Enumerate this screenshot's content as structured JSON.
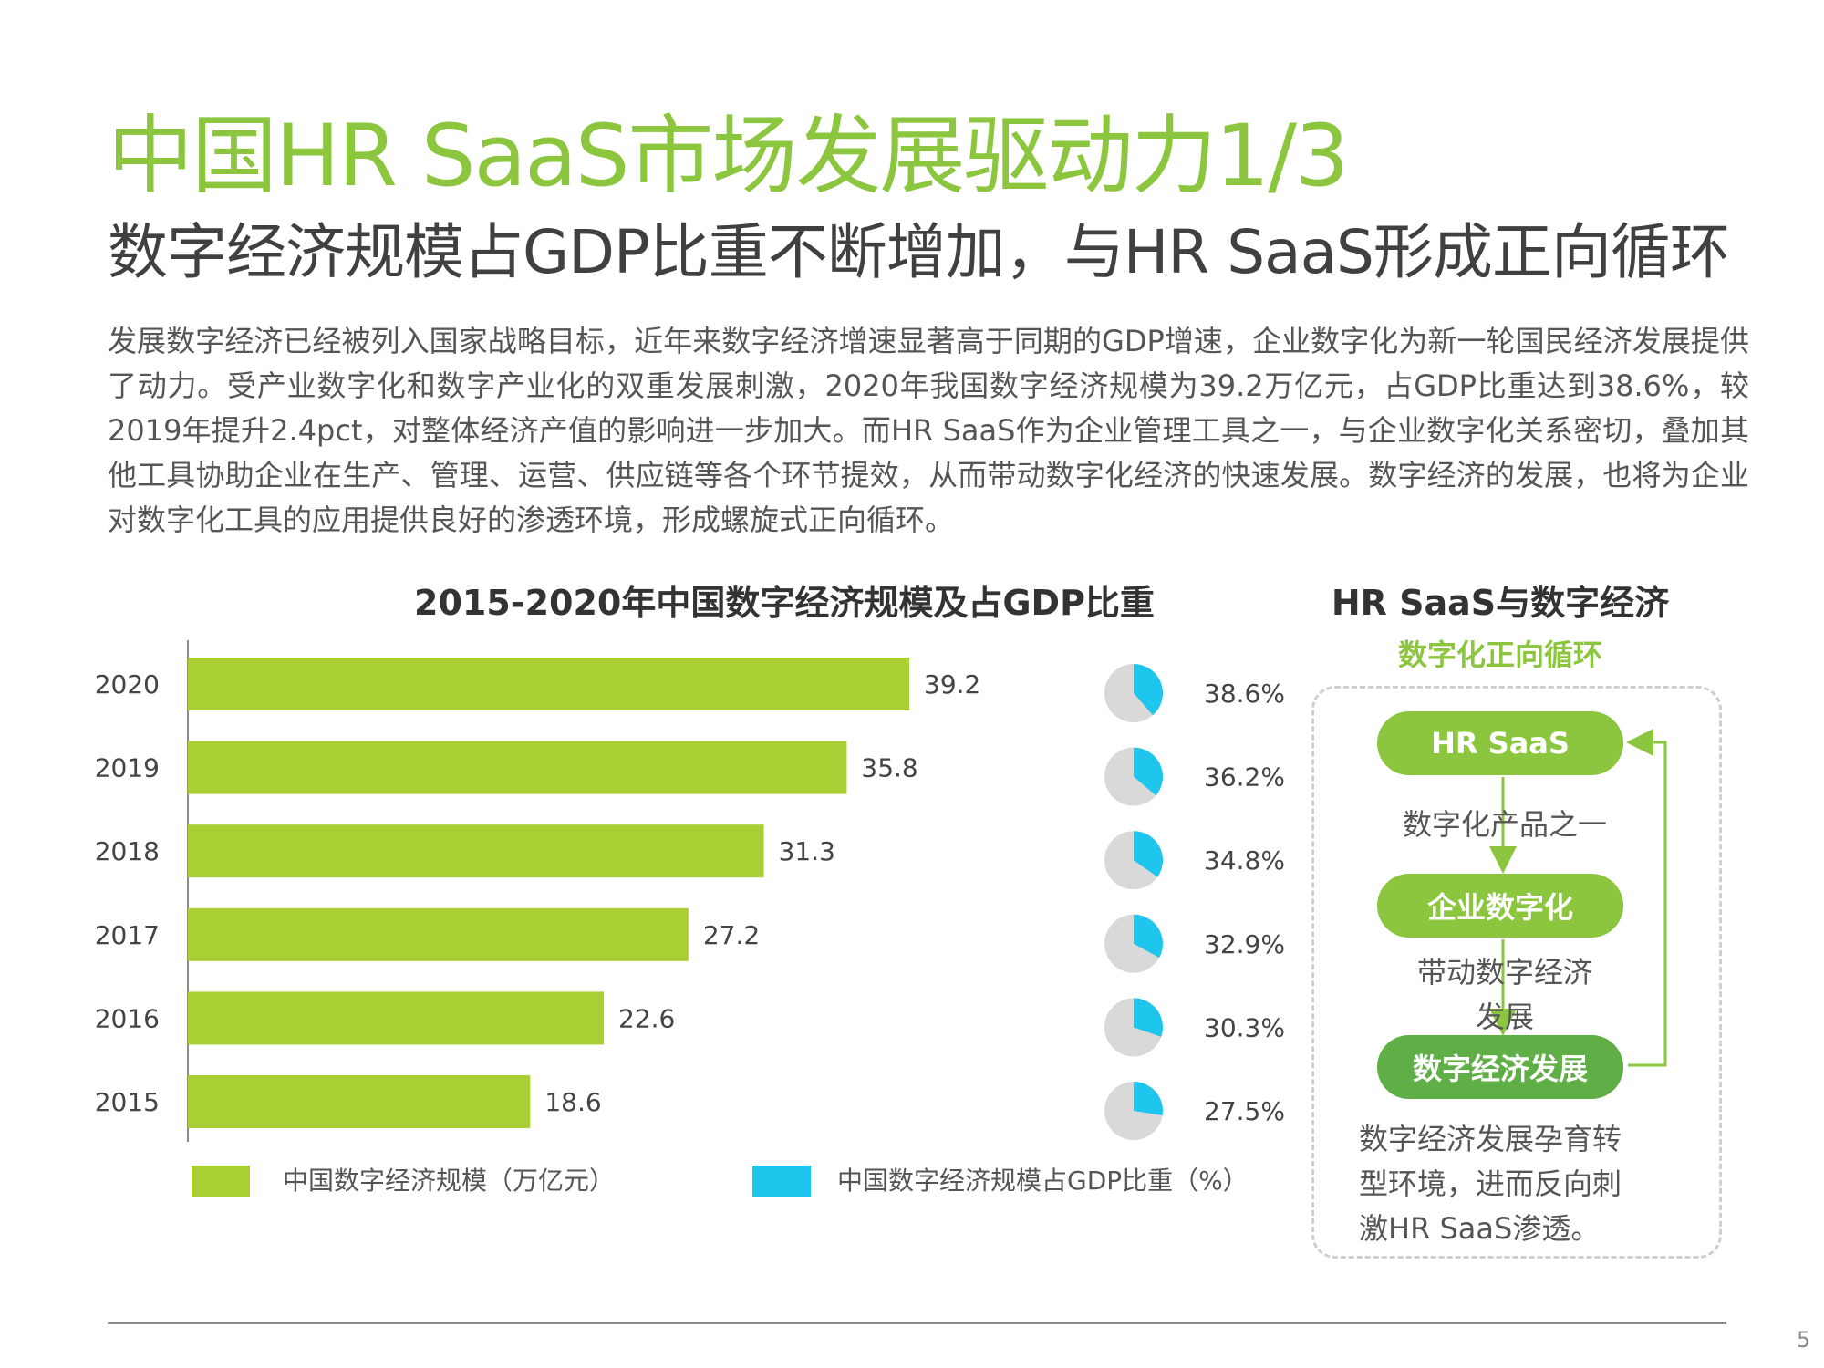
{
  "title": "中国HR SaaS市场发展驱动力1/3",
  "subtitle": "数字经济规模占GDP比重不断增加，与HR SaaS形成正向循环",
  "intro": "发展数字经济已经被列入国家战略目标，近年来数字经济增速显著高于同期的GDP增速，企业数字化为新一轮国民经济发展提供了动力。受产业数字化和数字产业化的双重发展刺激，2020年我国数字经济规模为39.2万亿元，占GDP比重达到38.6%，较2019年提升2.4pct，对整体经济产值的影响进一步加大。而HR SaaS作为企业管理工具之一，与企业数字化关系密切，叠加其他工具协助企业在生产、管理、运营、供应链等各个环节提效，从而带动数字化经济的快速发展。数字经济的发展，也将为企业对数字化工具的应用提供良好的渗透环境，形成螺旋式正向循环。",
  "colors": {
    "bar": "#a9cf34",
    "pie_share": "#1ec6ee",
    "pie_rest": "#d9d9d9",
    "title": "#8cc63f",
    "pill": "#8cc63f",
    "pill_dark": "#5fae46"
  },
  "chart_data": {
    "type": "bar",
    "orientation": "horizontal",
    "title": "2015-2020年中国数字经济规模及占GDP比重",
    "categories": [
      "2020",
      "2019",
      "2018",
      "2017",
      "2016",
      "2015"
    ],
    "series": [
      {
        "name": "中国数字经济规模（万亿元）",
        "values": [
          39.2,
          35.8,
          31.3,
          27.2,
          22.6,
          18.6
        ],
        "labels": [
          "39.2",
          "35.8",
          "31.3",
          "27.2",
          "22.6",
          "18.6"
        ]
      },
      {
        "name": "中国数字经济规模占GDP比重（%）",
        "chart": "pie",
        "values": [
          38.6,
          36.2,
          34.8,
          32.9,
          30.3,
          27.5
        ],
        "labels": [
          "38.6%",
          "36.2%",
          "34.8%",
          "32.9%",
          "30.3%",
          "27.5%"
        ]
      }
    ],
    "xlim": [
      0,
      40
    ],
    "legend": "bottom"
  },
  "cycle": {
    "title": "HR SaaS与数字经济",
    "subtitle": "数字化正向循环",
    "node1": "HR SaaS",
    "edge1": "数字化产品之一",
    "node2": "企业数字化",
    "edge2_line1": "带动数字经济",
    "edge2_line2": "发展",
    "node3": "数字经济发展",
    "note_line1": "数字经济发展孕育转",
    "note_line2": "型环境，进而反向刺",
    "note_line3": "激HR SaaS渗透。"
  },
  "page_number": "5"
}
